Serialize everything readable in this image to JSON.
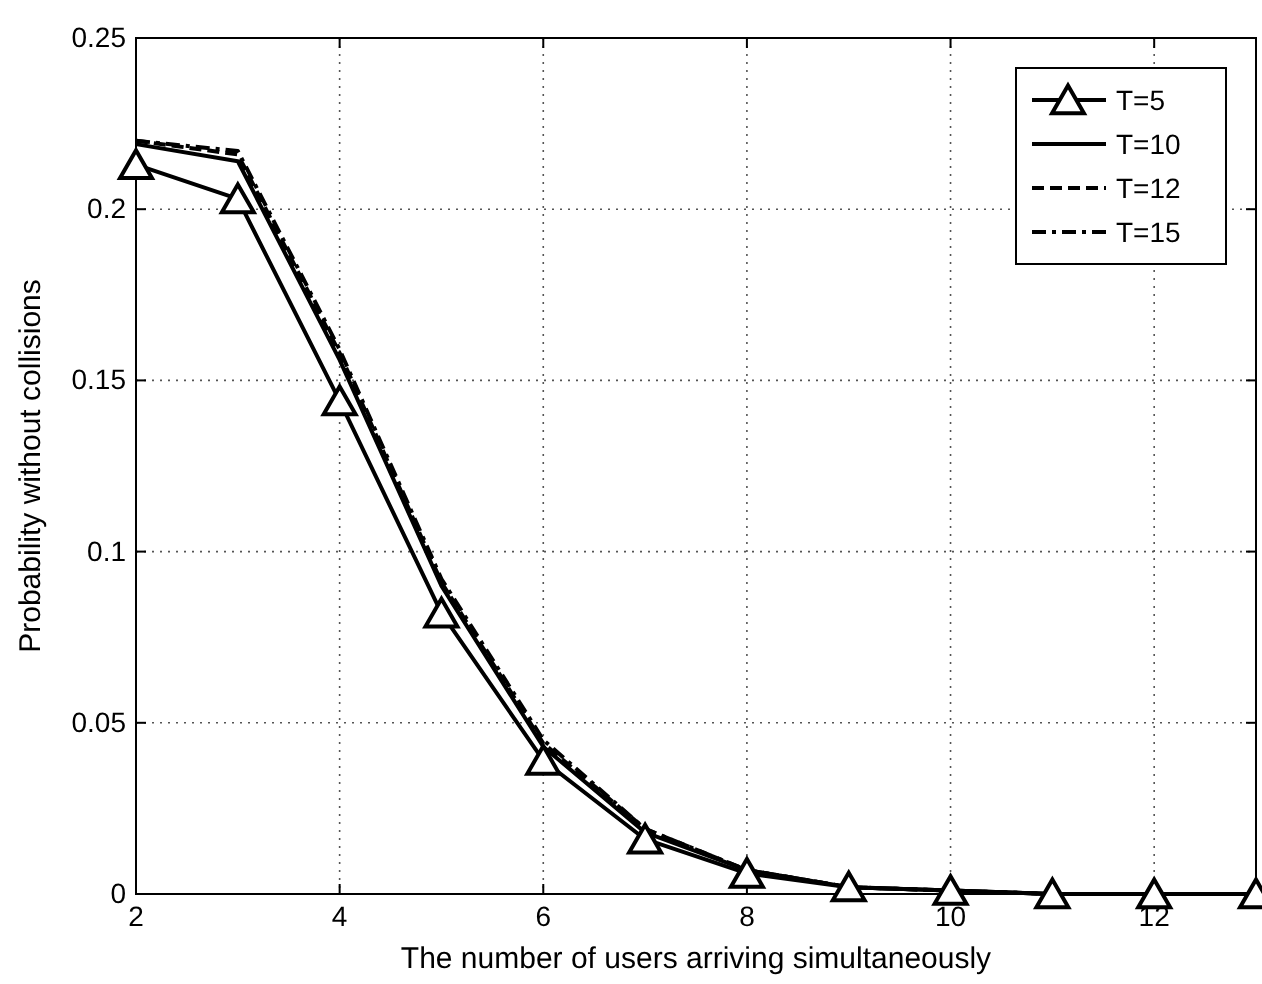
{
  "chart_data": {
    "type": "line",
    "xlabel": "The number of users arriving simultaneously",
    "ylabel": "Probability without collisions",
    "x": [
      2,
      3,
      4,
      5,
      6,
      7,
      8,
      9,
      10,
      11,
      12,
      13
    ],
    "xlim": [
      2,
      13
    ],
    "xticks": [
      2,
      4,
      6,
      8,
      10,
      12
    ],
    "ylim": [
      0,
      0.25
    ],
    "yticks": [
      0,
      0.05,
      0.1,
      0.15,
      0.2,
      0.25
    ],
    "grid": true,
    "legend": "top right",
    "series": [
      {
        "name": "T=5",
        "color": "#000000",
        "marker": "triangle",
        "line_style": "solid",
        "values": [
          0.213,
          0.203,
          0.144,
          0.082,
          0.039,
          0.016,
          0.006,
          0.002,
          0.001,
          0,
          0,
          0
        ]
      },
      {
        "name": "T=10",
        "color": "#000000",
        "marker": "none",
        "line_style": "solid",
        "values": [
          0.219,
          0.214,
          0.156,
          0.09,
          0.043,
          0.018,
          0.007,
          0.002,
          0.001,
          0,
          0,
          0
        ]
      },
      {
        "name": "T=12",
        "color": "#000000",
        "marker": "none",
        "line_style": "dashed",
        "values": [
          0.22,
          0.216,
          0.158,
          0.091,
          0.044,
          0.019,
          0.007,
          0.002,
          0.001,
          0,
          0,
          0
        ]
      },
      {
        "name": "T=15",
        "color": "#000000",
        "marker": "none",
        "line_style": "dashdot",
        "values": [
          0.22,
          0.217,
          0.159,
          0.092,
          0.045,
          0.019,
          0.007,
          0.002,
          0.001,
          0,
          0,
          0
        ]
      }
    ]
  }
}
